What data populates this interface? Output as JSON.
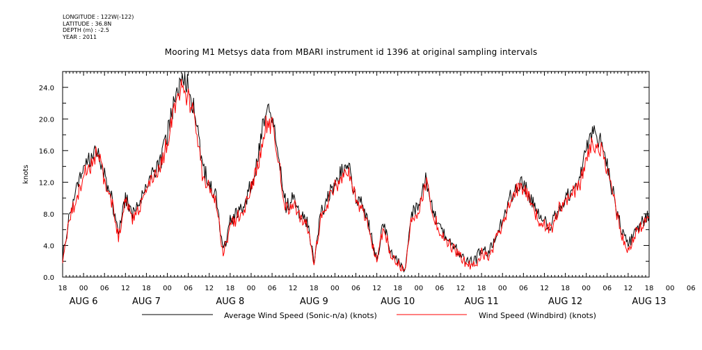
{
  "header": {
    "longitude": "LONGITUDE : 122W(-122)",
    "latitude": "LATITUDE : 36.8N",
    "depth": "DEPTH (m) : -2.5",
    "year": "YEAR : 2011"
  },
  "chart_data": {
    "type": "line",
    "title": "Mooring M1 Metsys data from MBARI instrument id 1396 at original sampling intervals",
    "ylabel": "knots",
    "ylim": [
      0,
      26
    ],
    "y_ticks": [
      "0.0",
      "4.0",
      "8.0",
      "12.0",
      "16.0",
      "20.0",
      "24.0"
    ],
    "x_range_hours": [
      0,
      168
    ],
    "x_start": "AUG 5 18:00",
    "x_hour_labels": [
      "18",
      "00",
      "06",
      "12",
      "18",
      "00",
      "06",
      "12",
      "18",
      "00",
      "06",
      "12",
      "18",
      "00",
      "06",
      "12",
      "18",
      "00",
      "06",
      "12",
      "18",
      "00",
      "06",
      "12",
      "18",
      "00",
      "06",
      "12",
      "18",
      "00",
      "06",
      "12",
      "18"
    ],
    "date_labels": [
      {
        "text": "AUG  6",
        "hour": 6
      },
      {
        "text": "AUG  7",
        "hour": 24
      },
      {
        "text": "AUG  8",
        "hour": 48
      },
      {
        "text": "AUG  9",
        "hour": 72
      },
      {
        "text": "AUG 10",
        "hour": 96
      },
      {
        "text": "AUG 11",
        "hour": 120
      },
      {
        "text": "AUG 12",
        "hour": 144
      },
      {
        "text": "AUG 13",
        "hour": 168
      }
    ],
    "series": [
      {
        "name": "Average Wind Speed (Sonic-n/a) (knots)",
        "color": "#000000",
        "x": [
          0,
          2,
          4,
          6,
          8,
          10,
          12,
          14,
          16,
          18,
          20,
          22,
          24,
          26,
          28,
          30,
          32,
          34,
          36,
          38,
          40,
          42,
          44,
          46,
          48,
          50,
          52,
          54,
          56,
          58,
          60,
          62,
          64,
          66,
          68,
          70,
          72,
          74,
          76,
          78,
          80,
          82,
          84,
          86,
          88,
          90,
          92,
          94,
          96,
          98,
          100,
          102,
          104,
          106,
          108,
          110,
          112,
          114,
          116,
          118,
          120,
          122,
          124,
          126,
          128,
          130,
          132,
          134,
          136,
          138,
          140,
          142,
          144,
          146,
          148,
          150,
          152,
          154,
          156,
          158,
          160,
          162,
          164,
          166,
          168
        ],
        "values": [
          2.5,
          8,
          11,
          14,
          15,
          16.5,
          13,
          10,
          5.5,
          10,
          8,
          9,
          12,
          13,
          14.5,
          18,
          22,
          25,
          24,
          21,
          14,
          12,
          10,
          3,
          7,
          8,
          9,
          12,
          15,
          21,
          20.5,
          15,
          9,
          10,
          8,
          7,
          2,
          8,
          10,
          12,
          13.5,
          14,
          10,
          9,
          6,
          2,
          7,
          3,
          2,
          1,
          8,
          9,
          12.5,
          9,
          6,
          5,
          4,
          3,
          2,
          2,
          3.5,
          3,
          5,
          7,
          10,
          11.5,
          12,
          10,
          8,
          7,
          6.5,
          9,
          10,
          11,
          12,
          16,
          18,
          17,
          14,
          10,
          6,
          4,
          6,
          7,
          8
        ]
      },
      {
        "name": "Wind Speed (Windbird) (knots)",
        "color": "#ff0000",
        "x": [
          0,
          2,
          4,
          6,
          8,
          10,
          12,
          14,
          16,
          18,
          20,
          22,
          24,
          26,
          28,
          30,
          32,
          34,
          36,
          38,
          40,
          42,
          44,
          46,
          48,
          50,
          52,
          54,
          56,
          58,
          60,
          62,
          64,
          66,
          68,
          70,
          72,
          74,
          76,
          78,
          80,
          82,
          84,
          86,
          88,
          90,
          92,
          94,
          96,
          98,
          100,
          102,
          104,
          106,
          108,
          110,
          112,
          114,
          116,
          118,
          120,
          122,
          124,
          126,
          128,
          130,
          132,
          134,
          136,
          138,
          140,
          142,
          144,
          146,
          148,
          150,
          152,
          154,
          156,
          158,
          160,
          162,
          164,
          166,
          168
        ],
        "values": [
          2.2,
          7.5,
          10,
          13,
          14,
          16,
          12,
          9.5,
          5,
          9.5,
          7.5,
          8.5,
          11.5,
          12.5,
          14,
          17,
          21,
          23.5,
          22.5,
          20,
          13,
          11,
          9.5,
          2.8,
          6.5,
          7.5,
          8.5,
          11.5,
          14,
          19.5,
          19,
          14,
          8.5,
          9.5,
          7.5,
          6.5,
          1.8,
          7.5,
          9.5,
          11.5,
          12.5,
          13.5,
          9.5,
          8.5,
          5.5,
          1.8,
          6.5,
          2.8,
          1.8,
          0.8,
          7.5,
          8.5,
          12,
          8.5,
          5.5,
          4.5,
          3.5,
          2.5,
          1.5,
          1.5,
          3,
          2.5,
          4.5,
          6.5,
          9.5,
          11,
          11.5,
          9.5,
          7.5,
          6.5,
          6,
          8.5,
          9.5,
          10.5,
          11.5,
          15,
          17,
          16.5,
          13.5,
          9.5,
          5.5,
          3.5,
          5.5,
          6.5,
          7.5
        ]
      }
    ]
  },
  "legend": {
    "series1_label": "Average Wind Speed (Sonic-n/a) (knots)",
    "series2_label": "Wind Speed (Windbird) (knots)"
  }
}
